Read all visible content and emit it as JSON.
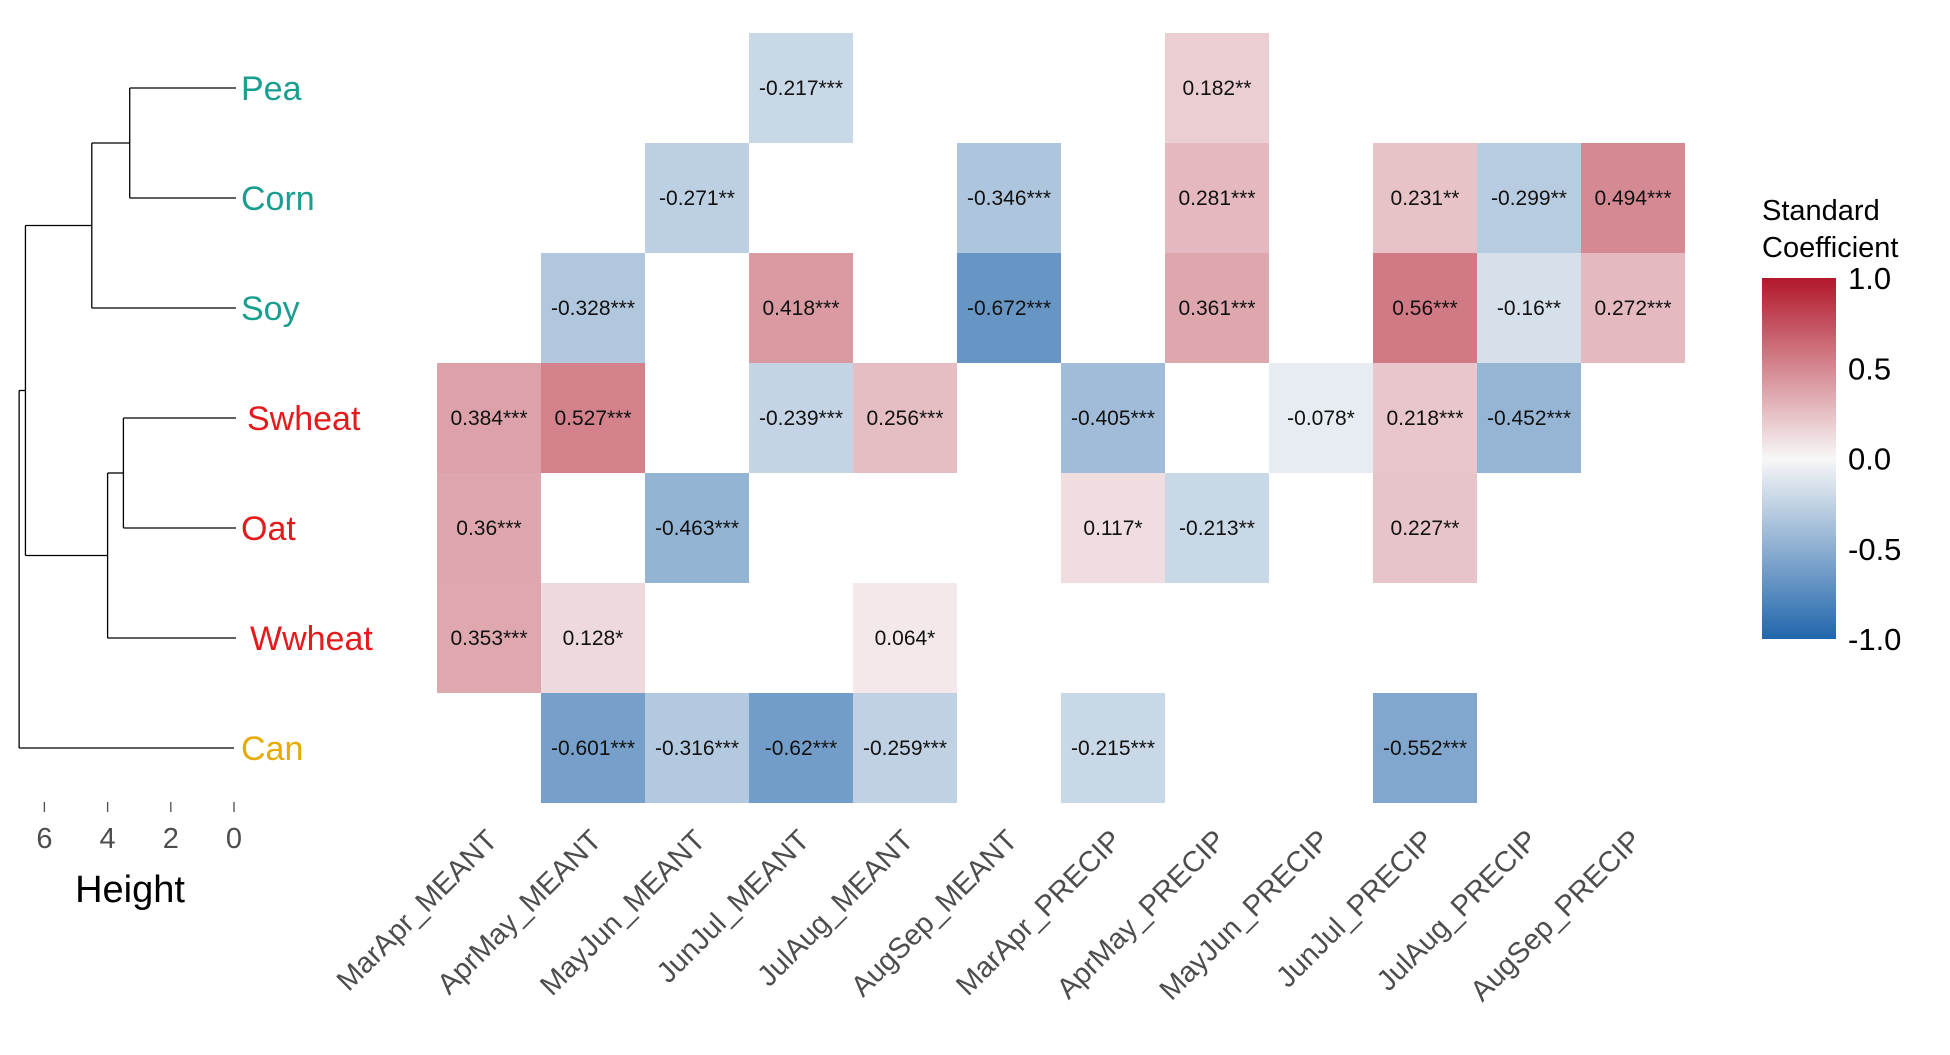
{
  "chart_data": {
    "type": "heatmap",
    "rows": [
      "Pea",
      "Corn",
      "Soy",
      "Swheat",
      "Oat",
      "Wwheat",
      "Can"
    ],
    "row_colors": [
      "#1a9e8f",
      "#1a9e8f",
      "#1a9e8f",
      "#e41a1c",
      "#e41a1c",
      "#e41a1c",
      "#e6ab02"
    ],
    "columns": [
      "MarApr_MEANT",
      "AprMay_MEANT",
      "MayJun_MEANT",
      "JunJul_MEANT",
      "JulAug_MEANT",
      "AugSep_MEANT",
      "MarApr_PRECIP",
      "AprMay_PRECIP",
      "MayJun_PRECIP",
      "JunJul_PRECIP",
      "JulAug_PRECIP",
      "AugSep_PRECIP"
    ],
    "cells": [
      {
        "row": "Pea",
        "col": "JunJul_MEANT",
        "value": -0.217,
        "label": "-0.217***"
      },
      {
        "row": "Pea",
        "col": "AprMay_PRECIP",
        "value": 0.182,
        "label": "0.182**"
      },
      {
        "row": "Corn",
        "col": "MayJun_MEANT",
        "value": -0.271,
        "label": "-0.271**"
      },
      {
        "row": "Corn",
        "col": "AugSep_MEANT",
        "value": -0.346,
        "label": "-0.346***"
      },
      {
        "row": "Corn",
        "col": "AprMay_PRECIP",
        "value": 0.281,
        "label": "0.281***"
      },
      {
        "row": "Corn",
        "col": "JunJul_PRECIP",
        "value": 0.231,
        "label": "0.231**"
      },
      {
        "row": "Corn",
        "col": "JulAug_PRECIP",
        "value": -0.299,
        "label": "-0.299**"
      },
      {
        "row": "Corn",
        "col": "AugSep_PRECIP",
        "value": 0.494,
        "label": "0.494***"
      },
      {
        "row": "Soy",
        "col": "AprMay_MEANT",
        "value": -0.328,
        "label": "-0.328***"
      },
      {
        "row": "Soy",
        "col": "JunJul_MEANT",
        "value": 0.418,
        "label": "0.418***"
      },
      {
        "row": "Soy",
        "col": "AugSep_MEANT",
        "value": -0.672,
        "label": "-0.672***"
      },
      {
        "row": "Soy",
        "col": "AprMay_PRECIP",
        "value": 0.361,
        "label": "0.361***"
      },
      {
        "row": "Soy",
        "col": "JunJul_PRECIP",
        "value": 0.56,
        "label": "0.56***"
      },
      {
        "row": "Soy",
        "col": "JulAug_PRECIP",
        "value": -0.16,
        "label": "-0.16**"
      },
      {
        "row": "Soy",
        "col": "AugSep_PRECIP",
        "value": 0.272,
        "label": "0.272***"
      },
      {
        "row": "Swheat",
        "col": "MarApr_MEANT",
        "value": 0.384,
        "label": "0.384***"
      },
      {
        "row": "Swheat",
        "col": "AprMay_MEANT",
        "value": 0.527,
        "label": "0.527***"
      },
      {
        "row": "Swheat",
        "col": "JunJul_MEANT",
        "value": -0.239,
        "label": "-0.239***"
      },
      {
        "row": "Swheat",
        "col": "JulAug_MEANT",
        "value": 0.256,
        "label": "0.256***"
      },
      {
        "row": "Swheat",
        "col": "MarApr_PRECIP",
        "value": -0.405,
        "label": "-0.405***"
      },
      {
        "row": "Swheat",
        "col": "MayJun_PRECIP",
        "value": -0.078,
        "label": "-0.078*"
      },
      {
        "row": "Swheat",
        "col": "JunJul_PRECIP",
        "value": 0.218,
        "label": "0.218***"
      },
      {
        "row": "Swheat",
        "col": "JulAug_PRECIP",
        "value": -0.452,
        "label": "-0.452***"
      },
      {
        "row": "Oat",
        "col": "MarApr_MEANT",
        "value": 0.36,
        "label": "0.36***"
      },
      {
        "row": "Oat",
        "col": "MayJun_MEANT",
        "value": -0.463,
        "label": "-0.463***"
      },
      {
        "row": "Oat",
        "col": "MarApr_PRECIP",
        "value": 0.117,
        "label": "0.117*"
      },
      {
        "row": "Oat",
        "col": "AprMay_PRECIP",
        "value": -0.213,
        "label": "-0.213**"
      },
      {
        "row": "Oat",
        "col": "JunJul_PRECIP",
        "value": 0.227,
        "label": "0.227**"
      },
      {
        "row": "Wwheat",
        "col": "MarApr_MEANT",
        "value": 0.353,
        "label": "0.353***"
      },
      {
        "row": "Wwheat",
        "col": "AprMay_MEANT",
        "value": 0.128,
        "label": "0.128*"
      },
      {
        "row": "Wwheat",
        "col": "JulAug_MEANT",
        "value": 0.064,
        "label": "0.064*"
      },
      {
        "row": "Can",
        "col": "AprMay_MEANT",
        "value": -0.601,
        "label": "-0.601***"
      },
      {
        "row": "Can",
        "col": "MayJun_MEANT",
        "value": -0.316,
        "label": "-0.316***"
      },
      {
        "row": "Can",
        "col": "JunJul_MEANT",
        "value": -0.62,
        "label": "-0.62***"
      },
      {
        "row": "Can",
        "col": "JulAug_MEANT",
        "value": -0.259,
        "label": "-0.259***"
      },
      {
        "row": "Can",
        "col": "MarApr_PRECIP",
        "value": -0.215,
        "label": "-0.215***"
      },
      {
        "row": "Can",
        "col": "JunJul_PRECIP",
        "value": -0.552,
        "label": "-0.552***"
      }
    ],
    "color_scale": {
      "domain": [
        -1.0,
        0.0,
        1.0
      ],
      "colors": [
        "#2166ac",
        "#f7f7f7",
        "#b2182b"
      ]
    },
    "legend": {
      "title_lines": [
        "Standard",
        "Coefficient"
      ],
      "ticks": [
        "1.0",
        "0.5",
        "0.0",
        "-0.5",
        "-1.0"
      ],
      "placement": "right"
    },
    "dendrogram": {
      "axis_title": "Height",
      "ticks": [
        "6",
        "4",
        "2",
        "0"
      ],
      "merges": [
        {
          "children": [
            "Pea",
            "Corn"
          ],
          "height": 3.3
        },
        {
          "children": [
            "Pea+Corn",
            "Soy"
          ],
          "height": 4.5
        },
        {
          "children": [
            "Swheat",
            "Oat"
          ],
          "height": 3.5
        },
        {
          "children": [
            "Swheat+Oat",
            "Wwheat"
          ],
          "height": 4.0
        },
        {
          "children": [
            "Pea+Corn+Soy",
            "Swheat+Oat+Wwheat"
          ],
          "height": 6.6
        },
        {
          "children": [
            "all",
            "Can"
          ],
          "height": 6.8
        }
      ]
    }
  }
}
